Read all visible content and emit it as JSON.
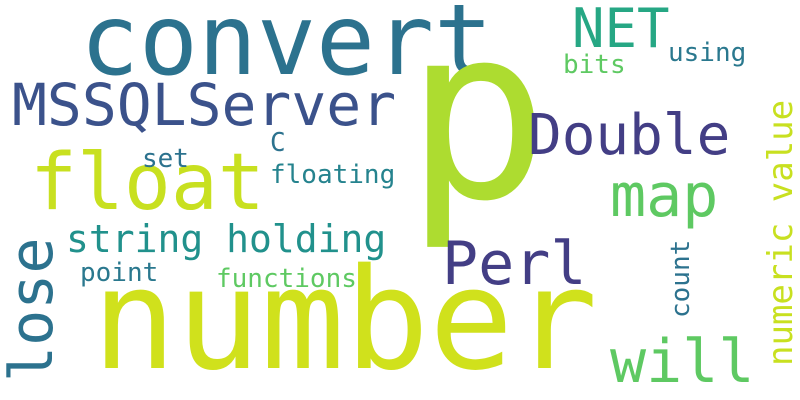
{
  "words": {
    "convert": {
      "text": "convert",
      "color": "#2c728e"
    },
    "p": {
      "text": "p",
      "color": "#addc30"
    },
    "number": {
      "text": "number",
      "color": "#d0e11c"
    },
    "float": {
      "text": "float",
      "color": "#c8e020"
    },
    "MSSQLServer": {
      "text": "MSSQLServer",
      "color": "#3b528b"
    },
    "NET": {
      "text": "NET",
      "color": "#26a784"
    },
    "using": {
      "text": "using",
      "color": "#2a788e"
    },
    "bits": {
      "text": "bits",
      "color": "#5ec962"
    },
    "Double": {
      "text": "Double",
      "color": "#433e85"
    },
    "map": {
      "text": "map",
      "color": "#5ec962"
    },
    "numeric_value": {
      "text": "numeric value",
      "color": "#c8e020"
    },
    "C": {
      "text": "C",
      "color": "#2c728e"
    },
    "set": {
      "text": "set",
      "color": "#2c728e"
    },
    "floating": {
      "text": "floating",
      "color": "#25838e"
    },
    "string_holding": {
      "text": "string holding",
      "color": "#21918c"
    },
    "lose": {
      "text": "lose",
      "color": "#2c728e"
    },
    "point": {
      "text": "point",
      "color": "#2a788e"
    },
    "functions": {
      "text": "functions",
      "color": "#5ec962"
    },
    "Perl": {
      "text": "Perl",
      "color": "#433e85"
    },
    "count": {
      "text": "count",
      "color": "#2c728e"
    },
    "will": {
      "text": "will",
      "color": "#5ec962"
    }
  }
}
